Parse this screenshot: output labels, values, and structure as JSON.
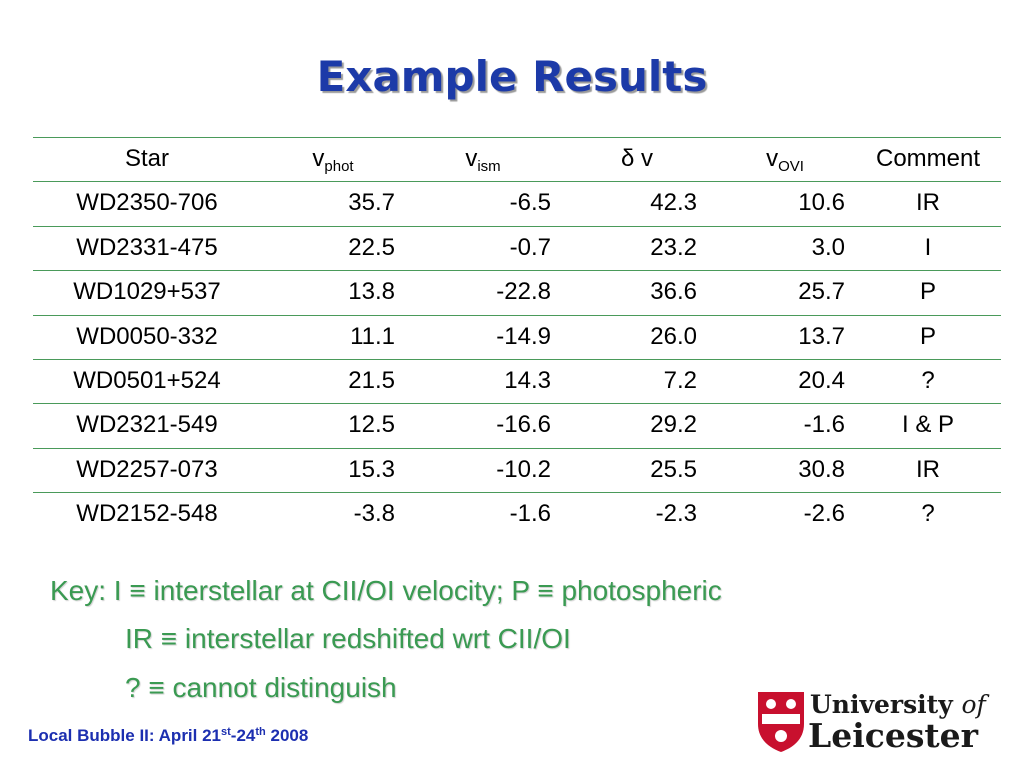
{
  "title": "Example Results",
  "table": {
    "header": [
      {
        "text": "Star"
      },
      {
        "text": "v",
        "sub": "phot"
      },
      {
        "text": "v",
        "sub": "ism"
      },
      {
        "text": "δ v"
      },
      {
        "text": "v",
        "sub": "OVI"
      },
      {
        "text": "Comment"
      }
    ],
    "rows": [
      [
        "WD2350-706",
        "35.7",
        "-6.5",
        "42.3",
        "10.6",
        "IR"
      ],
      [
        "WD2331-475",
        "22.5",
        "-0.7",
        "23.2",
        "3.0",
        "I"
      ],
      [
        "WD1029+537",
        "13.8",
        "-22.8",
        "36.6",
        "25.7",
        "P"
      ],
      [
        "WD0050-332",
        "11.1",
        "-14.9",
        "26.0",
        "13.7",
        "P"
      ],
      [
        "WD0501+524",
        "21.5",
        "14.3",
        "7.2",
        "20.4",
        "?"
      ],
      [
        "WD2321-549",
        "12.5",
        "-16.6",
        "29.2",
        "-1.6",
        "I & P"
      ],
      [
        "WD2257-073",
        "15.3",
        "-10.2",
        "25.5",
        "30.8",
        "IR"
      ],
      [
        "WD2152-548",
        "-3.8",
        "-1.6",
        "-2.3",
        "-2.6",
        "?"
      ]
    ]
  },
  "key": [
    "Key: I ≡ interstellar at CII/OI velocity; P ≡ photospheric",
    "IR ≡ interstellar redshifted wrt CII/OI",
    "? ≡ cannot distinguish"
  ],
  "footer": {
    "pre": "Local Bubble II: April 21",
    "sup1": "st",
    "mid": "-24",
    "sup2": "th",
    "post": " 2008"
  },
  "logo": {
    "university": "University",
    "of": "of",
    "name": "Leicester"
  }
}
